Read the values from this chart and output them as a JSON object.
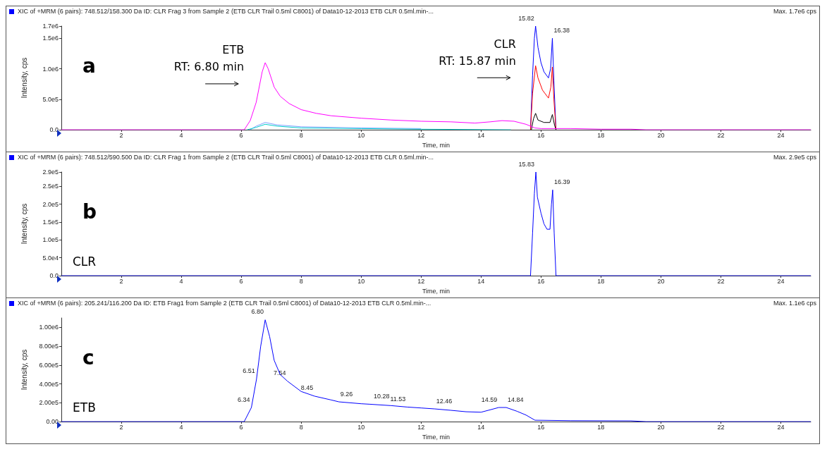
{
  "chart_data": [
    {
      "type": "line",
      "title": "XIC of +MRM (6 pairs): 748.512/158.300 Da ID: CLR Frag 3 from Sample 2 (ETB CLR Trail 0.5ml C8001) of Data10-12-2013 ETB CLR 0.5ml.min-...",
      "subtitle": "Max. 1.7e6 cps",
      "xlabel": "Time, min",
      "ylabel": "Intensity, cps",
      "xlim": [
        0,
        25
      ],
      "xticks": [
        2,
        4,
        6,
        8,
        10,
        12,
        14,
        16,
        18,
        20,
        22,
        24
      ],
      "ylim": [
        0,
        1700000
      ],
      "yticks": [
        {
          "value": 0,
          "label": "0.0"
        },
        {
          "value": 500000,
          "label": "5.0e5"
        },
        {
          "value": 1000000,
          "label": "1.0e6"
        },
        {
          "value": 1500000,
          "label": "1.5e6"
        },
        {
          "value": 1700000,
          "label": "1.7e6"
        }
      ],
      "series": [
        {
          "color": "#80a0ff",
          "x": [
            6.3,
            6.5,
            6.8,
            7.2,
            8,
            10,
            12
          ],
          "values": [
            0,
            60000,
            120000,
            80000,
            50000,
            30000,
            20000
          ]
        },
        {
          "color": "#00cccc",
          "x": [
            6.2,
            6.5,
            6.8,
            7.2,
            8,
            10,
            12,
            15
          ],
          "values": [
            0,
            40000,
            90000,
            60000,
            30000,
            20000,
            10000,
            0
          ]
        },
        {
          "color": "#0000ff",
          "x": [
            15.65,
            15.72,
            15.78,
            15.82,
            15.9,
            16.0,
            16.1,
            16.25,
            16.32,
            16.38,
            16.43,
            16.5
          ],
          "values": [
            0,
            900000,
            1500000,
            1700000,
            1350000,
            1100000,
            950000,
            850000,
            1000000,
            1500000,
            800000,
            0
          ]
        },
        {
          "color": "#ff0000",
          "x": [
            15.65,
            15.72,
            15.82,
            15.9,
            16.05,
            16.25,
            16.33,
            16.38,
            16.43,
            16.5
          ],
          "values": [
            0,
            600000,
            1050000,
            850000,
            650000,
            520000,
            700000,
            1030000,
            500000,
            0
          ]
        },
        {
          "color": "#000000",
          "x": [
            15.68,
            15.75,
            15.82,
            15.9,
            16.1,
            16.3,
            16.38,
            16.45,
            16.5
          ],
          "values": [
            0,
            180000,
            270000,
            160000,
            120000,
            120000,
            250000,
            80000,
            0
          ]
        },
        {
          "color": "#ff00ff",
          "x": [
            0,
            6.1,
            6.3,
            6.5,
            6.7,
            6.8,
            6.9,
            7.1,
            7.3,
            7.6,
            8,
            8.5,
            9,
            10,
            11,
            12,
            13,
            13.8,
            14.3,
            14.7,
            15.1,
            15.5,
            15.8,
            16,
            17,
            18,
            19,
            19.5,
            25
          ],
          "values": [
            0,
            0,
            150000,
            450000,
            950000,
            1100000,
            1000000,
            700000,
            550000,
            430000,
            330000,
            270000,
            230000,
            190000,
            160000,
            140000,
            130000,
            110000,
            130000,
            150000,
            140000,
            90000,
            30000,
            20000,
            20000,
            10000,
            10000,
            0,
            0
          ]
        }
      ],
      "annotations": [
        "a",
        {
          "text": "ETB\nRT: 6.80 min",
          "x": 6.8,
          "y": 1100000
        },
        {
          "text": "CLR\nRT: 15.87 min",
          "x": 15.87,
          "y": 1200000
        },
        {
          "text": "15.82",
          "x": 15.82,
          "y": 1700000
        },
        {
          "text": "16.38",
          "x": 16.38,
          "y": 1500000
        }
      ]
    },
    {
      "type": "line",
      "title": "XIC of +MRM (6 pairs): 748.512/590.500 Da ID: CLR Frag 1 from Sample 2 (ETB CLR Trail 0.5ml C8001) of Data10-12-2013 ETB CLR 0.5ml.min-...",
      "subtitle": "Max. 2.9e5 cps",
      "xlabel": "Time, min",
      "ylabel": "Intensity, cps",
      "xlim": [
        0,
        25
      ],
      "xticks": [
        2,
        4,
        6,
        8,
        10,
        12,
        14,
        16,
        18,
        20,
        22,
        24
      ],
      "ylim": [
        0,
        290000
      ],
      "yticks": [
        {
          "value": 0,
          "label": "0.0"
        },
        {
          "value": 50000,
          "label": "5.0e4"
        },
        {
          "value": 100000,
          "label": "1.0e5"
        },
        {
          "value": 150000,
          "label": "1.5e5"
        },
        {
          "value": 200000,
          "label": "2.0e5"
        },
        {
          "value": 250000,
          "label": "2.5e5"
        },
        {
          "value": 290000,
          "label": "2.9e5"
        }
      ],
      "series": [
        {
          "color": "#0000ff",
          "x": [
            0,
            15.65,
            15.72,
            15.78,
            15.83,
            15.88,
            16.0,
            16.1,
            16.2,
            16.3,
            16.35,
            16.39,
            16.44,
            16.5,
            25
          ],
          "values": [
            0,
            0,
            120000,
            230000,
            290000,
            220000,
            175000,
            145000,
            130000,
            130000,
            200000,
            240000,
            120000,
            0,
            0
          ]
        }
      ],
      "annotations": [
        "b",
        "CLR",
        {
          "text": "15.83",
          "x": 15.83,
          "y": 290000
        },
        {
          "text": "16.39",
          "x": 16.39,
          "y": 240000
        }
      ]
    },
    {
      "type": "line",
      "title": "XIC of +MRM (6 pairs): 205.241/116.200 Da ID: ETB Frag1 from Sample 2 (ETB CLR Trail 0.5ml C8001) of Data10-12-2013 ETB CLR 0.5ml.min-...",
      "subtitle": "Max. 1.1e6 cps",
      "xlabel": "Time, min",
      "ylabel": "Intensity, cps",
      "xlim": [
        0,
        25
      ],
      "xticks": [
        2,
        4,
        6,
        8,
        10,
        12,
        14,
        16,
        18,
        20,
        22,
        24
      ],
      "ylim": [
        0,
        1100000
      ],
      "yticks": [
        {
          "value": 0,
          "label": "0.00"
        },
        {
          "value": 200000,
          "label": "2.00e5"
        },
        {
          "value": 400000,
          "label": "4.00e5"
        },
        {
          "value": 600000,
          "label": "6.00e5"
        },
        {
          "value": 800000,
          "label": "8.00e5"
        },
        {
          "value": 1000000,
          "label": "1.00e6"
        }
      ],
      "series": [
        {
          "color": "#0000ff",
          "x": [
            0,
            6.1,
            6.34,
            6.51,
            6.65,
            6.8,
            6.95,
            7.1,
            7.3,
            7.54,
            8,
            8.45,
            9,
            9.26,
            10,
            10.28,
            11,
            11.53,
            12,
            12.46,
            13,
            13.5,
            14,
            14.3,
            14.59,
            14.84,
            15.2,
            15.5,
            15.8,
            17,
            19,
            19.5,
            25
          ],
          "values": [
            0,
            0,
            150000,
            450000,
            800000,
            1080000,
            900000,
            650000,
            500000,
            430000,
            320000,
            270000,
            230000,
            210000,
            190000,
            185000,
            170000,
            155000,
            145000,
            135000,
            120000,
            105000,
            100000,
            125000,
            150000,
            150000,
            110000,
            70000,
            15000,
            10000,
            8000,
            0,
            0
          ]
        }
      ],
      "annotations": [
        "c",
        "ETB",
        {
          "text": "6.34",
          "x": 6.34,
          "y": 150000
        },
        {
          "text": "6.51",
          "x": 6.51,
          "y": 450000
        },
        {
          "text": "6.80",
          "x": 6.8,
          "y": 1080000
        },
        {
          "text": "7.54",
          "x": 7.54,
          "y": 430000
        },
        {
          "text": "8.45",
          "x": 8.45,
          "y": 270000
        },
        {
          "text": "9.26",
          "x": 9.26,
          "y": 210000
        },
        {
          "text": "10.28",
          "x": 10.28,
          "y": 185000
        },
        {
          "text": "11.53",
          "x": 11.53,
          "y": 155000
        },
        {
          "text": "12.46",
          "x": 12.46,
          "y": 135000
        },
        {
          "text": "14.59",
          "x": 14.59,
          "y": 150000
        },
        {
          "text": "14.84",
          "x": 14.84,
          "y": 150000
        }
      ]
    }
  ]
}
